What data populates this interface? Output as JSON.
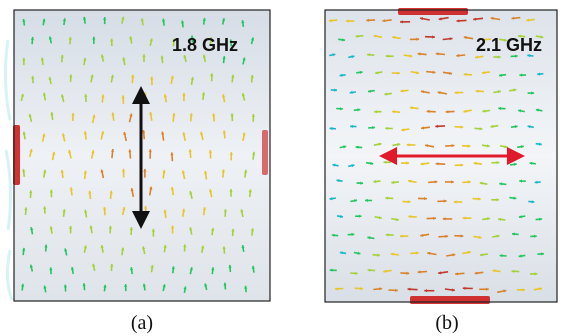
{
  "panels": [
    {
      "id": "a",
      "frequency_label": "1.8 GHz",
      "caption": "(a)",
      "dominant_current_direction": "vertical",
      "indicator_arrow_color": "#111111",
      "edge_highlight_color": "#cc1111"
    },
    {
      "id": "b",
      "frequency_label": "2.1 GHz",
      "caption": "(b)",
      "dominant_current_direction": "horizontal",
      "indicator_arrow_color": "#e01a2a",
      "edge_highlight_color": "#cc1111"
    }
  ],
  "vector_colormap": [
    "#14b8c8",
    "#22c55e",
    "#a3d13a",
    "#e8c52a",
    "#d9822b",
    "#c0392b"
  ]
}
